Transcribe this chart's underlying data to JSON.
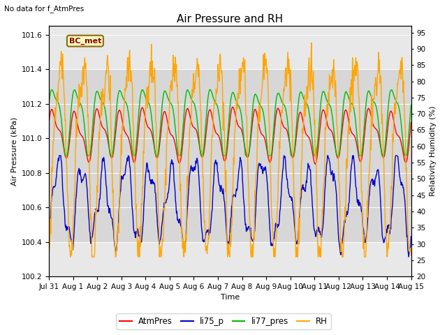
{
  "title": "Air Pressure and RH",
  "top_left_text": "No data for f_AtmPres",
  "annotation_box_text": "BC_met",
  "xlabel": "Time",
  "ylabel_left": "Air Pressure (kPa)",
  "ylabel_right": "Relativity Humidity (%)",
  "ylim_left": [
    100.2,
    101.65
  ],
  "ylim_right": [
    20,
    97
  ],
  "yticks_left": [
    100.2,
    100.4,
    100.6,
    100.8,
    101.0,
    101.2,
    101.4,
    101.6
  ],
  "yticks_right": [
    20,
    25,
    30,
    35,
    40,
    45,
    50,
    55,
    60,
    65,
    70,
    75,
    80,
    85,
    90,
    95
  ],
  "xtick_labels": [
    "Jul 31",
    "Aug 1",
    "Aug 2",
    "Aug 3",
    "Aug 4",
    "Aug 5",
    "Aug 6",
    "Aug 7",
    "Aug 8",
    "Aug 9",
    "Aug 10",
    "Aug 11",
    "Aug 12",
    "Aug 13",
    "Aug 14",
    "Aug 15"
  ],
  "colors": {
    "AtmPres": "#ff0000",
    "li75_p": "#0000cc",
    "li77_pres": "#00bb00",
    "RH": "#ffa500"
  },
  "line_widths": {
    "AtmPres": 1.0,
    "li75_p": 1.0,
    "li77_pres": 1.0,
    "RH": 1.0
  },
  "legend_labels": [
    "AtmPres",
    "li75_p",
    "li77_pres",
    "RH"
  ],
  "gray_band": [
    100.4,
    101.4
  ],
  "background_color": "#ffffff",
  "plot_bg_color": "#e8e8e8",
  "title_fontsize": 11,
  "label_fontsize": 8,
  "tick_fontsize": 7.5
}
